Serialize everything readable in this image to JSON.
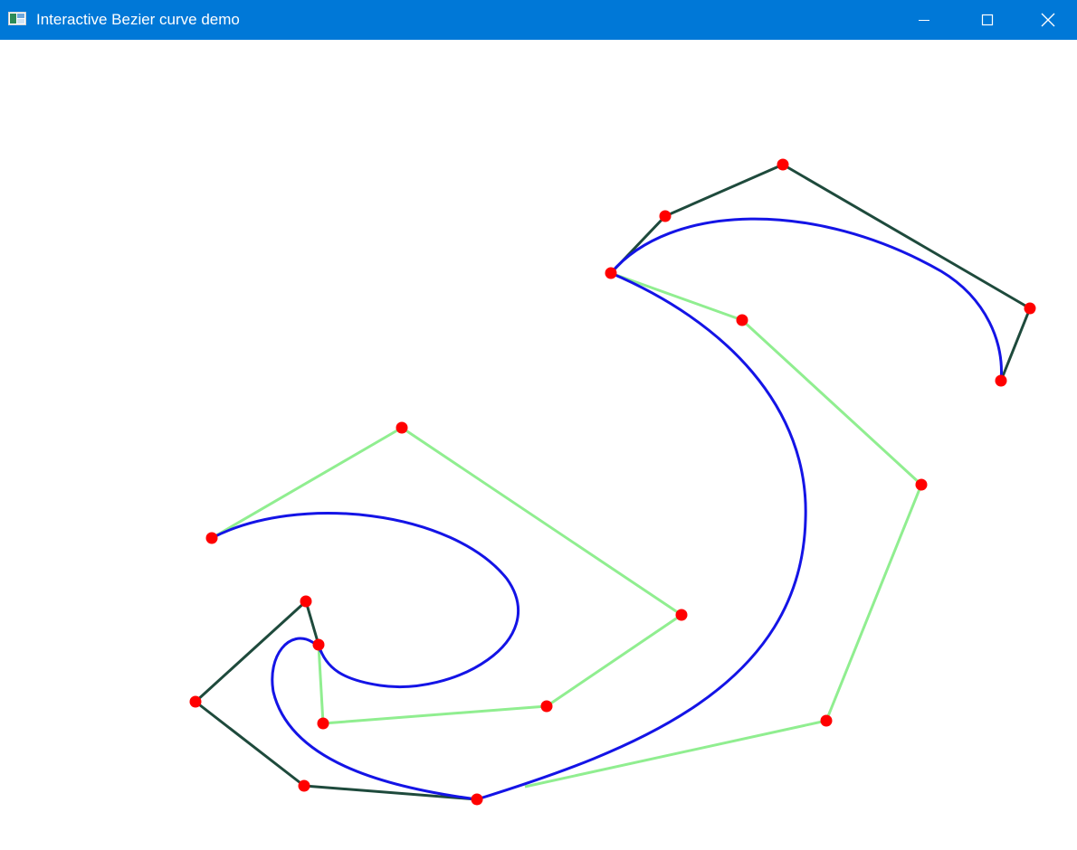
{
  "window": {
    "title": "Interactive Bezier curve demo",
    "icon": "app-window-icon",
    "controls": [
      "minimize-icon",
      "maximize-icon",
      "close-icon"
    ]
  },
  "colors": {
    "titlebar": "#0078d7",
    "curve": "#1414e6",
    "control_polygon_dark": "#1e4a3c",
    "control_polygon_light": "#90ee90",
    "control_point": "#ff0000"
  }
}
